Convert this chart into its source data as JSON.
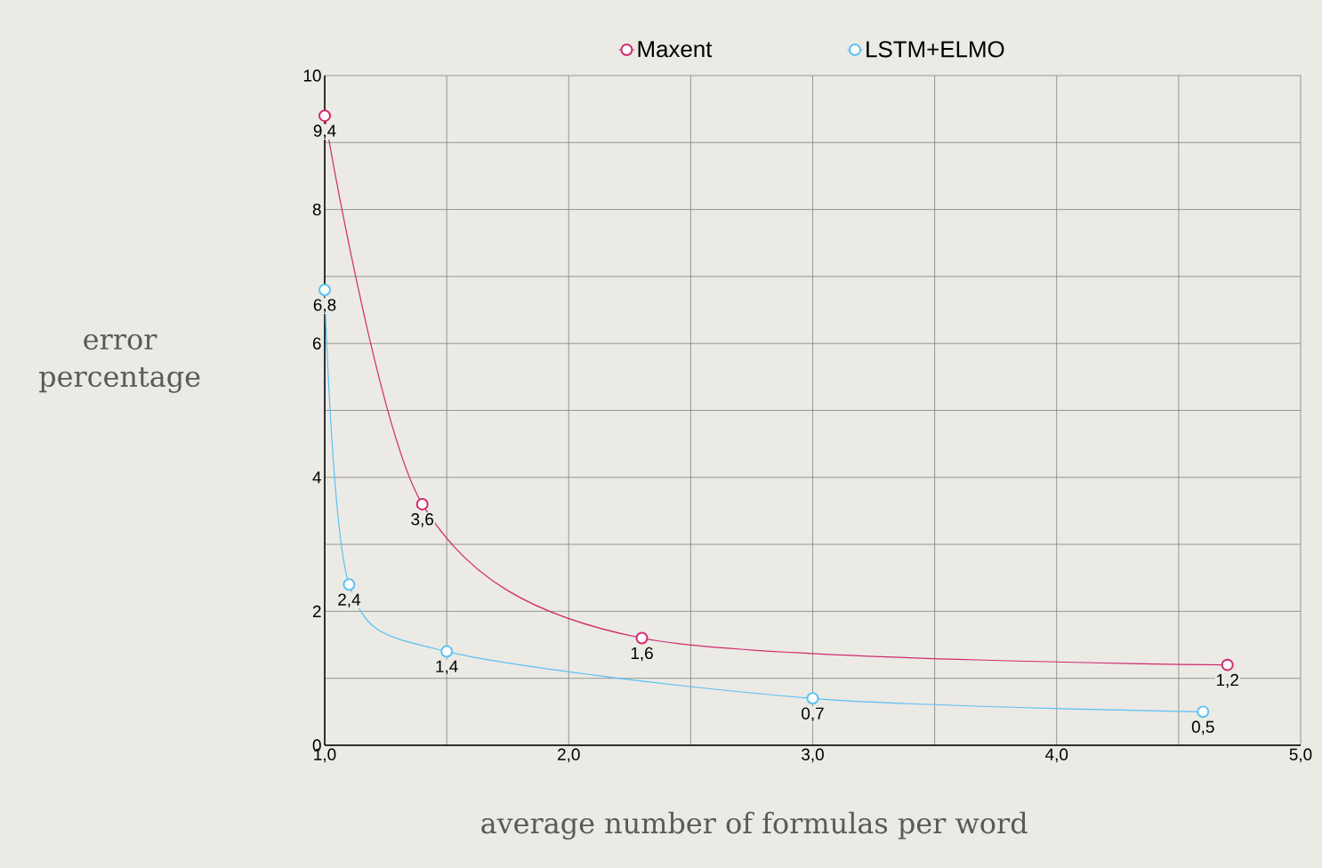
{
  "chart_data": {
    "type": "line",
    "xlabel": "average number of formulas per word",
    "ylabel": "error percentage",
    "xlim": [
      1,
      5
    ],
    "ylim": [
      0,
      10
    ],
    "xticks": [
      {
        "value": 1,
        "label": "1,0"
      },
      {
        "value": 1.5,
        "label": null
      },
      {
        "value": 2,
        "label": "2,0"
      },
      {
        "value": 2.5,
        "label": null
      },
      {
        "value": 3,
        "label": "3,0"
      },
      {
        "value": 3.5,
        "label": null
      },
      {
        "value": 4,
        "label": "4,0"
      },
      {
        "value": 4.5,
        "label": null
      },
      {
        "value": 5,
        "label": "5,0"
      }
    ],
    "yticks": [
      0,
      {
        "value": 1,
        "label": null
      },
      2,
      {
        "value": 3,
        "label": null
      },
      4,
      {
        "value": 5,
        "label": null
      },
      6,
      {
        "value": 7,
        "label": null
      },
      8,
      {
        "value": 9,
        "label": null
      },
      10
    ],
    "grid": true,
    "legend": "top",
    "marker": "circle",
    "line_style": "solid",
    "series": [
      {
        "name": "Maxent",
        "color": "#d0296f",
        "x": [
          1.0,
          1.4,
          2.3,
          4.7
        ],
        "values": [
          9.4,
          3.6,
          1.6,
          1.2
        ],
        "value_labels": [
          "9,4",
          "3,6",
          "1,6",
          "1,2"
        ]
      },
      {
        "name": "LSTM+ELMO",
        "color": "#5bc0f5",
        "x": [
          1.0,
          1.1,
          1.5,
          3.0,
          4.6
        ],
        "values": [
          6.8,
          2.4,
          1.4,
          0.7,
          0.5
        ],
        "value_labels": [
          "6,8",
          "2,4",
          "1,4",
          "0,7",
          "0,5"
        ]
      }
    ]
  }
}
